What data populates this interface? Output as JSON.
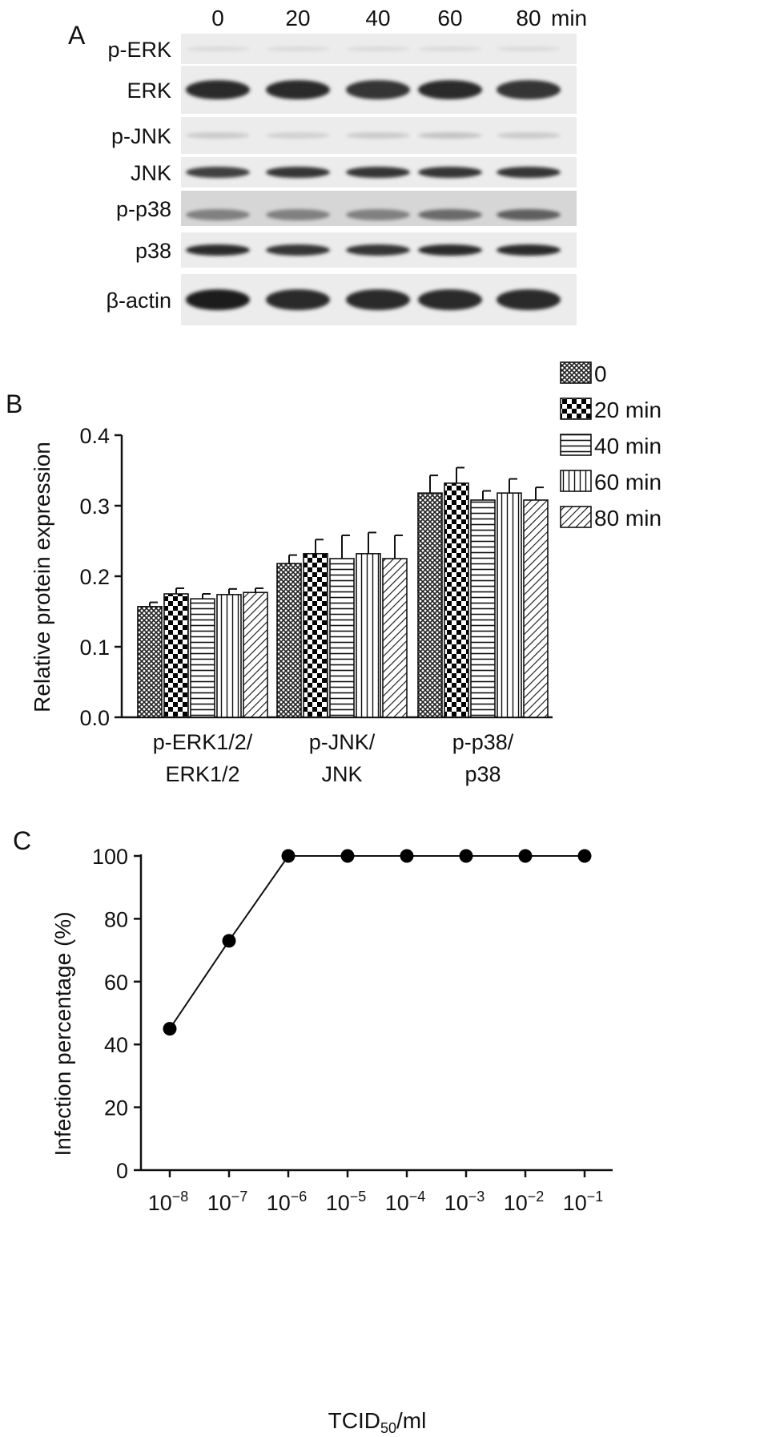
{
  "panels": {
    "a": {
      "label": "A"
    },
    "b": {
      "label": "B"
    },
    "c": {
      "label": "C"
    }
  },
  "blot": {
    "time_labels": [
      "0",
      "20",
      "40",
      "60",
      "80"
    ],
    "time_unit": "min",
    "rows": [
      {
        "label": "p-ERK",
        "intensity": [
          0.08,
          0.08,
          0.08,
          0.08,
          0.08
        ]
      },
      {
        "label": "ERK",
        "intensity": [
          0.9,
          0.9,
          0.85,
          0.9,
          0.85
        ]
      },
      {
        "label": "p-JNK",
        "intensity": [
          0.15,
          0.12,
          0.15,
          0.18,
          0.15
        ]
      },
      {
        "label": "JNK",
        "intensity": [
          0.8,
          0.85,
          0.85,
          0.85,
          0.85
        ]
      },
      {
        "label": "p-p38",
        "intensity": [
          0.5,
          0.5,
          0.5,
          0.6,
          0.65
        ]
      },
      {
        "label": "p38",
        "intensity": [
          0.9,
          0.85,
          0.85,
          0.9,
          0.9
        ]
      },
      {
        "label": "β-actin",
        "intensity": [
          0.95,
          0.9,
          0.9,
          0.9,
          0.9
        ]
      }
    ]
  },
  "chart_data": [
    {
      "type": "bar",
      "panel": "B",
      "ylabel": "Relative protein expression",
      "ylim": [
        0,
        0.4
      ],
      "yticks": [
        "0.0",
        "0.1",
        "0.2",
        "0.3",
        "0.4"
      ],
      "categories": [
        [
          "p-ERK1/2/",
          "ERK1/2"
        ],
        [
          "p-JNK/",
          "JNK"
        ],
        [
          "p-p38/",
          "p38"
        ]
      ],
      "legend_position": "top-right",
      "series": [
        {
          "name": "0",
          "pattern": "crosshatch",
          "values": [
            0.157,
            0.218,
            0.318
          ],
          "errors": [
            0.006,
            0.012,
            0.025
          ]
        },
        {
          "name": "20 min",
          "pattern": "checkerboard",
          "values": [
            0.175,
            0.232,
            0.332
          ],
          "errors": [
            0.008,
            0.02,
            0.022
          ]
        },
        {
          "name": "40 min",
          "pattern": "horizontal",
          "values": [
            0.168,
            0.225,
            0.308
          ],
          "errors": [
            0.007,
            0.033,
            0.013
          ]
        },
        {
          "name": "60 min",
          "pattern": "vertical",
          "values": [
            0.174,
            0.232,
            0.318
          ],
          "errors": [
            0.008,
            0.03,
            0.02
          ]
        },
        {
          "name": "80 min",
          "pattern": "diagonal",
          "values": [
            0.177,
            0.225,
            0.308
          ],
          "errors": [
            0.006,
            0.033,
            0.018
          ]
        }
      ]
    },
    {
      "type": "line",
      "panel": "C",
      "ylabel": "Infection percentage (%)",
      "xlabel_main": "TCID",
      "xlabel_sub": "50",
      "xlabel_tail": "/ml",
      "ylim": [
        0,
        100
      ],
      "yticks": [
        "0",
        "20",
        "40",
        "60",
        "80",
        "100"
      ],
      "x_base": "10",
      "x_exponents": [
        "−8",
        "−7",
        "−6",
        "−5",
        "−4",
        "−3",
        "−2",
        "−1"
      ],
      "y": [
        45,
        73,
        100,
        100,
        100,
        100,
        100,
        100
      ]
    }
  ]
}
